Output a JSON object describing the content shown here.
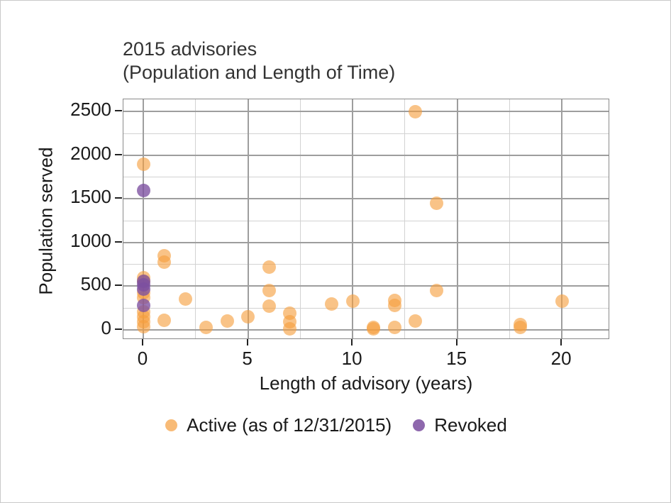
{
  "title": {
    "line1": "2015 advisories",
    "line2": "(Population and Length of Time)"
  },
  "chart_data": {
    "type": "scatter",
    "title": "2015 advisories (Population and Length of Time)",
    "xlabel": "Length of advisory (years)",
    "ylabel": "Population served",
    "x_ticks": [
      0,
      5,
      10,
      15,
      20
    ],
    "x_minor_ticks": [
      2.5,
      7.5,
      12.5,
      17.5
    ],
    "y_ticks": [
      0,
      500,
      1000,
      1500,
      2000,
      2500
    ],
    "y_minor_ticks": [
      250,
      750,
      1250,
      1750,
      2250
    ],
    "xlim": [
      -0.95,
      22.3
    ],
    "ylim": [
      -114,
      2642
    ],
    "grid": "major+minor",
    "legend_position": "bottom",
    "point_colors": {
      "active": "#F59E3D",
      "revoked": "#7C4FA0"
    },
    "series": [
      {
        "name": "Active (as of 12/31/2015)",
        "color": "#F59E3D",
        "opacity": 0.62,
        "points": [
          [
            0,
            1900
          ],
          [
            0,
            600
          ],
          [
            0,
            560
          ],
          [
            0,
            430
          ],
          [
            0,
            370
          ],
          [
            0,
            210
          ],
          [
            0,
            150
          ],
          [
            0,
            90
          ],
          [
            0,
            40
          ],
          [
            1,
            850
          ],
          [
            1,
            780
          ],
          [
            1,
            110
          ],
          [
            2,
            350
          ],
          [
            3,
            30
          ],
          [
            4,
            100
          ],
          [
            5,
            150
          ],
          [
            6,
            720
          ],
          [
            6,
            450
          ],
          [
            6,
            270
          ],
          [
            7,
            190
          ],
          [
            7,
            90
          ],
          [
            7,
            10
          ],
          [
            9,
            300
          ],
          [
            10,
            330
          ],
          [
            11,
            30
          ],
          [
            11,
            10
          ],
          [
            12,
            340
          ],
          [
            12,
            280
          ],
          [
            12,
            30
          ],
          [
            13,
            2500
          ],
          [
            13,
            100
          ],
          [
            14,
            1450
          ],
          [
            14,
            450
          ],
          [
            18,
            60
          ],
          [
            18,
            30
          ],
          [
            20,
            330
          ]
        ]
      },
      {
        "name": "Revoked",
        "color": "#7C4FA0",
        "opacity": 0.78,
        "points": [
          [
            0,
            1600
          ],
          [
            0,
            560
          ],
          [
            0,
            520
          ],
          [
            0,
            470
          ],
          [
            0,
            280
          ]
        ]
      }
    ]
  }
}
